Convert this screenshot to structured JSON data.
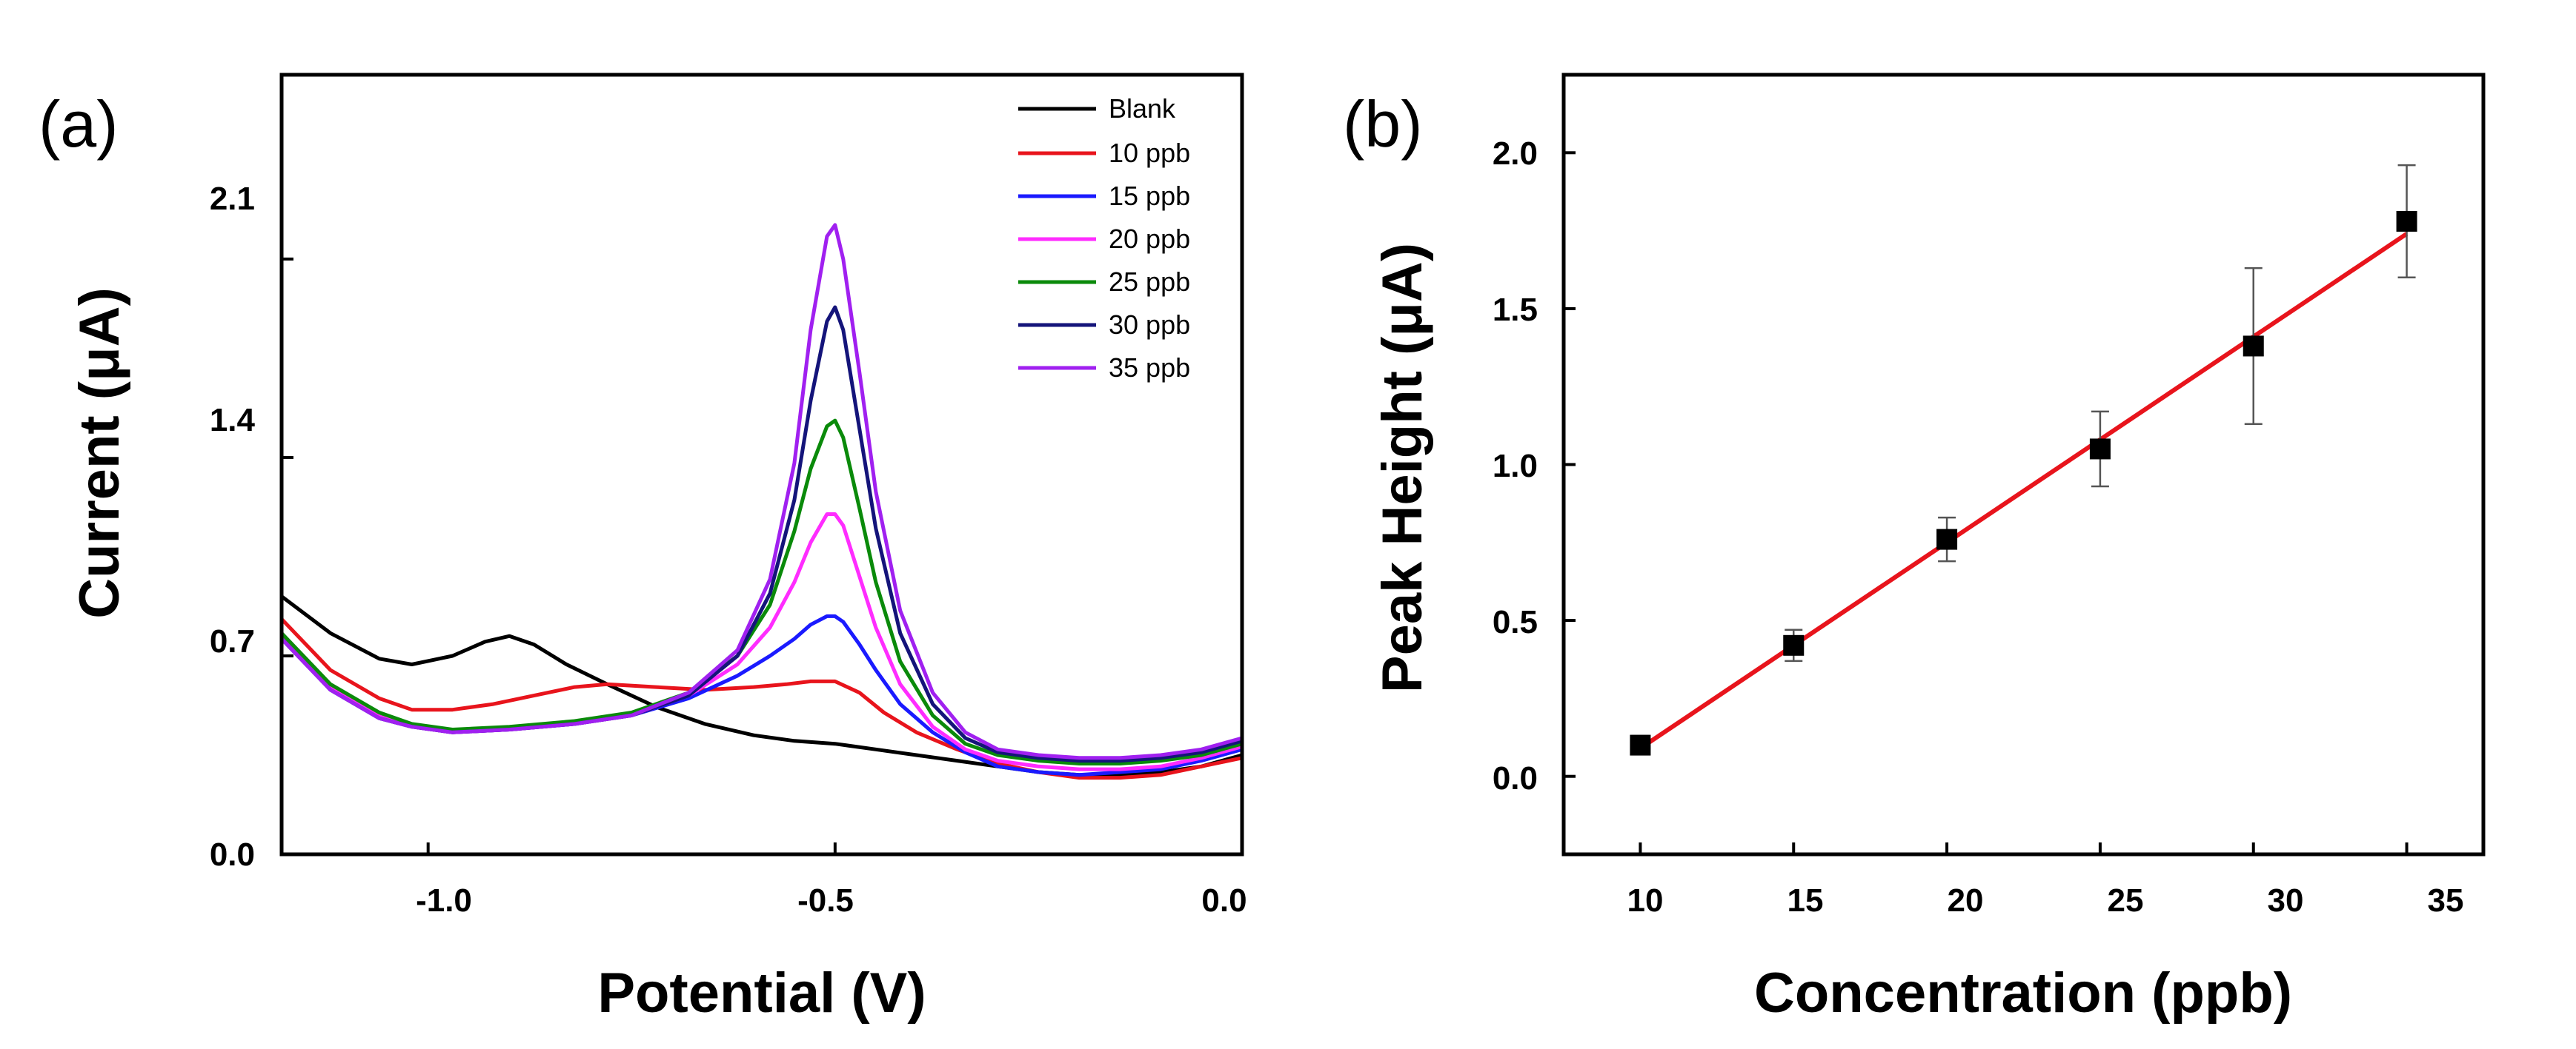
{
  "chart_data": [
    {
      "panel_label": "(a)",
      "type": "line",
      "xlabel": "Potential (V)",
      "ylabel": "Current (μA)",
      "xlim": [
        -1.18,
        0.0
      ],
      "ylim": [
        0.0,
        2.75
      ],
      "xticks": [
        -1.0,
        -0.5,
        0.0
      ],
      "xtick_labels": [
        "-1.0",
        "-0.5",
        "0.0"
      ],
      "yticks": [
        0.0,
        0.7,
        1.4,
        2.1
      ],
      "ytick_labels": [
        "0.0",
        "0.7",
        "1.4",
        "2.1"
      ],
      "grid": false,
      "legend_position": "top-right",
      "series": [
        {
          "name": "Blank",
          "color": "#000000",
          "x": [
            -1.18,
            -1.12,
            -1.06,
            -1.02,
            -0.97,
            -0.93,
            -0.9,
            -0.87,
            -0.83,
            -0.78,
            -0.72,
            -0.66,
            -0.6,
            -0.55,
            -0.5,
            -0.45,
            -0.4,
            -0.35,
            -0.3,
            -0.25,
            -0.2,
            -0.15,
            -0.1,
            -0.05,
            0.0
          ],
          "y": [
            0.91,
            0.78,
            0.69,
            0.67,
            0.7,
            0.75,
            0.77,
            0.74,
            0.67,
            0.6,
            0.52,
            0.46,
            0.42,
            0.4,
            0.39,
            0.37,
            0.35,
            0.33,
            0.31,
            0.29,
            0.28,
            0.28,
            0.29,
            0.31,
            0.35
          ]
        },
        {
          "name": "10 ppb",
          "color": "#e8141c",
          "x": [
            -1.18,
            -1.12,
            -1.06,
            -1.02,
            -0.97,
            -0.92,
            -0.87,
            -0.82,
            -0.78,
            -0.72,
            -0.66,
            -0.6,
            -0.56,
            -0.53,
            -0.5,
            -0.47,
            -0.44,
            -0.4,
            -0.35,
            -0.3,
            -0.25,
            -0.2,
            -0.15,
            -0.1,
            -0.05,
            0.0
          ],
          "y": [
            0.83,
            0.65,
            0.55,
            0.51,
            0.51,
            0.53,
            0.56,
            0.59,
            0.6,
            0.59,
            0.58,
            0.59,
            0.6,
            0.61,
            0.61,
            0.57,
            0.5,
            0.43,
            0.37,
            0.32,
            0.29,
            0.27,
            0.27,
            0.28,
            0.31,
            0.34
          ]
        },
        {
          "name": "15 ppb",
          "color": "#1a1aff",
          "x": [
            -1.18,
            -1.12,
            -1.06,
            -1.02,
            -0.97,
            -0.9,
            -0.82,
            -0.75,
            -0.68,
            -0.62,
            -0.58,
            -0.55,
            -0.53,
            -0.51,
            -0.5,
            -0.49,
            -0.47,
            -0.45,
            -0.42,
            -0.38,
            -0.34,
            -0.3,
            -0.25,
            -0.2,
            -0.15,
            -0.1,
            -0.05,
            0.0
          ],
          "y": [
            0.77,
            0.58,
            0.48,
            0.45,
            0.43,
            0.44,
            0.46,
            0.49,
            0.55,
            0.63,
            0.7,
            0.76,
            0.81,
            0.84,
            0.84,
            0.82,
            0.74,
            0.65,
            0.53,
            0.43,
            0.36,
            0.31,
            0.29,
            0.28,
            0.29,
            0.3,
            0.33,
            0.37
          ]
        },
        {
          "name": "20 ppb",
          "color": "#ff2cff",
          "x": [
            -1.18,
            -1.12,
            -1.06,
            -1.02,
            -0.97,
            -0.9,
            -0.82,
            -0.75,
            -0.68,
            -0.62,
            -0.58,
            -0.55,
            -0.53,
            -0.51,
            -0.5,
            -0.49,
            -0.47,
            -0.45,
            -0.42,
            -0.38,
            -0.34,
            -0.3,
            -0.25,
            -0.2,
            -0.15,
            -0.1,
            -0.05,
            0.0
          ],
          "y": [
            0.78,
            0.59,
            0.49,
            0.45,
            0.43,
            0.44,
            0.46,
            0.49,
            0.56,
            0.67,
            0.8,
            0.96,
            1.1,
            1.2,
            1.2,
            1.16,
            0.98,
            0.8,
            0.6,
            0.45,
            0.37,
            0.33,
            0.31,
            0.3,
            0.3,
            0.31,
            0.34,
            0.38
          ]
        },
        {
          "name": "25 ppb",
          "color": "#0a8a0a",
          "x": [
            -1.18,
            -1.12,
            -1.06,
            -1.02,
            -0.97,
            -0.9,
            -0.82,
            -0.75,
            -0.68,
            -0.62,
            -0.58,
            -0.55,
            -0.53,
            -0.51,
            -0.5,
            -0.49,
            -0.47,
            -0.45,
            -0.42,
            -0.38,
            -0.34,
            -0.3,
            -0.25,
            -0.2,
            -0.15,
            -0.1,
            -0.05,
            0.0
          ],
          "y": [
            0.78,
            0.6,
            0.5,
            0.46,
            0.44,
            0.45,
            0.47,
            0.5,
            0.57,
            0.7,
            0.88,
            1.14,
            1.36,
            1.51,
            1.53,
            1.47,
            1.22,
            0.96,
            0.68,
            0.49,
            0.39,
            0.35,
            0.33,
            0.32,
            0.32,
            0.33,
            0.35,
            0.39
          ]
        },
        {
          "name": "30 ppb",
          "color": "#14147a",
          "x": [
            -1.18,
            -1.12,
            -1.06,
            -1.02,
            -0.97,
            -0.9,
            -0.82,
            -0.75,
            -0.68,
            -0.62,
            -0.58,
            -0.55,
            -0.53,
            -0.51,
            -0.5,
            -0.49,
            -0.47,
            -0.45,
            -0.42,
            -0.38,
            -0.34,
            -0.3,
            -0.25,
            -0.2,
            -0.15,
            -0.1,
            -0.05,
            0.0
          ],
          "y": [
            0.76,
            0.58,
            0.48,
            0.45,
            0.43,
            0.44,
            0.46,
            0.49,
            0.56,
            0.7,
            0.92,
            1.25,
            1.6,
            1.88,
            1.93,
            1.85,
            1.5,
            1.15,
            0.78,
            0.53,
            0.41,
            0.36,
            0.34,
            0.33,
            0.33,
            0.34,
            0.36,
            0.4
          ]
        },
        {
          "name": "35 ppb",
          "color": "#a020f0",
          "x": [
            -1.18,
            -1.12,
            -1.06,
            -1.02,
            -0.97,
            -0.9,
            -0.82,
            -0.75,
            -0.68,
            -0.62,
            -0.58,
            -0.55,
            -0.53,
            -0.51,
            -0.5,
            -0.49,
            -0.47,
            -0.45,
            -0.42,
            -0.38,
            -0.34,
            -0.3,
            -0.25,
            -0.2,
            -0.15,
            -0.1,
            -0.05,
            0.0
          ],
          "y": [
            0.76,
            0.58,
            0.48,
            0.45,
            0.43,
            0.44,
            0.46,
            0.49,
            0.57,
            0.72,
            0.97,
            1.38,
            1.85,
            2.18,
            2.22,
            2.1,
            1.7,
            1.28,
            0.86,
            0.57,
            0.43,
            0.37,
            0.35,
            0.34,
            0.34,
            0.35,
            0.37,
            0.41
          ]
        }
      ]
    },
    {
      "panel_label": "(b)",
      "type": "scatter",
      "xlabel": "Concentration (ppb)",
      "ylabel": "Peak Height (μA)",
      "xlim": [
        7.5,
        37.5
      ],
      "ylim": [
        -0.25,
        2.25
      ],
      "xticks": [
        10,
        15,
        20,
        25,
        30,
        35
      ],
      "xtick_labels": [
        "10",
        "15",
        "20",
        "25",
        "30",
        "35"
      ],
      "yticks": [
        0.0,
        0.5,
        1.0,
        1.5,
        2.0
      ],
      "ytick_labels": [
        "0.0",
        "0.5",
        "1.0",
        "1.5",
        "2.0"
      ],
      "grid": false,
      "points": {
        "x": [
          10,
          15,
          20,
          25,
          30,
          35
        ],
        "y": [
          0.1,
          0.42,
          0.76,
          1.05,
          1.38,
          1.78
        ],
        "error": [
          0.03,
          0.05,
          0.07,
          0.12,
          0.25,
          0.18
        ],
        "color": "#000000",
        "marker": "square"
      },
      "fit_line": {
        "x": [
          10,
          35
        ],
        "y": [
          0.09,
          1.74
        ],
        "color": "#e8141c"
      }
    }
  ]
}
